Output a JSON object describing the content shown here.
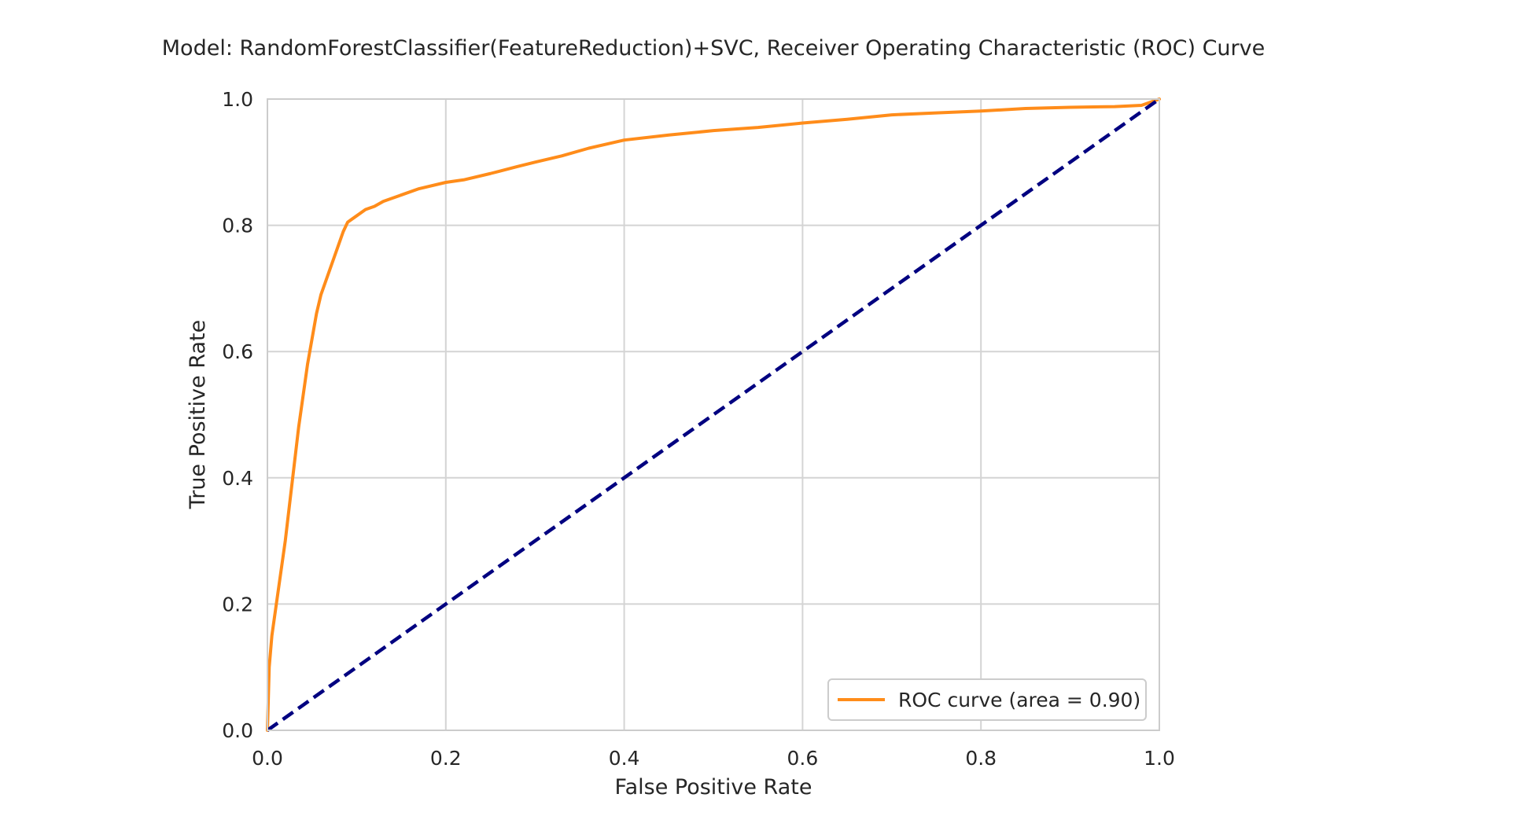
{
  "chart_data": {
    "type": "line",
    "title": "Model: RandomForestClassifier(FeatureReduction)+SVC, Receiver Operating Characteristic (ROC) Curve",
    "xlabel": "False Positive Rate",
    "ylabel": "True Positive Rate",
    "xlim": [
      0.0,
      1.0
    ],
    "ylim": [
      0.0,
      1.0
    ],
    "x_ticks": [
      0.0,
      0.2,
      0.4,
      0.6,
      0.8,
      1.0
    ],
    "y_ticks": [
      0.0,
      0.2,
      0.4,
      0.6,
      0.8,
      1.0
    ],
    "x_tick_labels": [
      "0.0",
      "0.2",
      "0.4",
      "0.6",
      "0.8",
      "1.0"
    ],
    "y_tick_labels": [
      "0.0",
      "0.2",
      "0.4",
      "0.6",
      "0.8",
      "1.0"
    ],
    "grid": true,
    "legend_position": "lower right",
    "series": [
      {
        "name": "ROC curve (area = 0.90)",
        "color": "#ff8c1a",
        "line_style": "solid",
        "x": [
          0.0,
          0.002,
          0.005,
          0.01,
          0.015,
          0.02,
          0.025,
          0.03,
          0.035,
          0.04,
          0.045,
          0.05,
          0.055,
          0.06,
          0.065,
          0.07,
          0.075,
          0.08,
          0.085,
          0.09,
          0.095,
          0.1,
          0.11,
          0.12,
          0.13,
          0.15,
          0.17,
          0.2,
          0.22,
          0.25,
          0.28,
          0.3,
          0.33,
          0.36,
          0.4,
          0.45,
          0.5,
          0.55,
          0.6,
          0.65,
          0.7,
          0.75,
          0.8,
          0.85,
          0.9,
          0.95,
          0.98,
          1.0
        ],
        "y": [
          0.0,
          0.1,
          0.15,
          0.2,
          0.25,
          0.3,
          0.36,
          0.42,
          0.48,
          0.53,
          0.58,
          0.62,
          0.66,
          0.69,
          0.71,
          0.73,
          0.75,
          0.77,
          0.79,
          0.805,
          0.81,
          0.815,
          0.825,
          0.83,
          0.838,
          0.848,
          0.858,
          0.868,
          0.872,
          0.882,
          0.893,
          0.9,
          0.91,
          0.922,
          0.935,
          0.943,
          0.95,
          0.955,
          0.962,
          0.968,
          0.975,
          0.978,
          0.981,
          0.985,
          0.987,
          0.988,
          0.99,
          1.0
        ]
      },
      {
        "name": "",
        "color": "#000080",
        "line_style": "dashed",
        "x": [
          0.0,
          1.0
        ],
        "y": [
          0.0,
          1.0
        ]
      }
    ],
    "legend": {
      "entries": [
        "ROC curve (area = 0.90)"
      ]
    }
  }
}
